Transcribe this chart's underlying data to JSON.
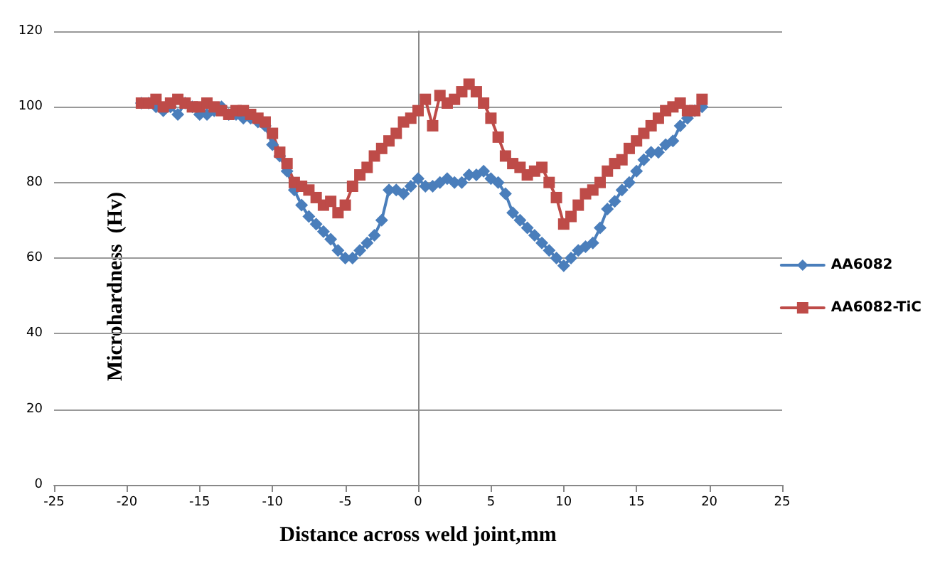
{
  "chart_data": {
    "type": "line",
    "xlabel": "Distance across weld joint,mm",
    "ylabel": "Microhardness  (Hv)",
    "x": [
      -19,
      -18.5,
      -18,
      -17.5,
      -17,
      -16.5,
      -16,
      -15.5,
      -15,
      -14.5,
      -14,
      -13.5,
      -13,
      -12.5,
      -12,
      -11.5,
      -11,
      -10.5,
      -10,
      -9.5,
      -9,
      -8.5,
      -8,
      -7.5,
      -7,
      -6.5,
      -6,
      -5.5,
      -5,
      -4.5,
      -4,
      -3.5,
      -3,
      -2.5,
      -2,
      -1.5,
      -1,
      -0.5,
      0,
      0.5,
      1,
      1.5,
      2,
      2.5,
      3,
      3.5,
      4,
      4.5,
      5,
      5.5,
      6,
      6.5,
      7,
      7.5,
      8,
      8.5,
      9,
      9.5,
      10,
      10.5,
      11,
      11.5,
      12,
      12.5,
      13,
      13.5,
      14,
      14.5,
      15,
      15.5,
      16,
      16.5,
      17,
      17.5,
      18,
      18.5,
      19,
      19.5
    ],
    "series": [
      {
        "name": "AA6082",
        "color": "#4a7ebb",
        "marker": "diamond",
        "values": [
          101,
          101,
          100,
          99,
          100,
          98,
          101,
          100,
          98,
          98,
          99,
          100,
          98,
          98,
          97,
          97,
          96,
          95,
          90,
          87,
          83,
          78,
          74,
          71,
          69,
          67,
          65,
          62,
          60,
          60,
          62,
          64,
          66,
          70,
          78,
          78,
          77,
          79,
          81,
          79,
          79,
          80,
          81,
          80,
          80,
          82,
          82,
          83,
          81,
          80,
          77,
          72,
          70,
          68,
          66,
          64,
          62,
          60,
          58,
          60,
          62,
          63,
          64,
          68,
          73,
          75,
          78,
          80,
          83,
          86,
          88,
          88,
          90,
          91,
          95,
          97,
          99,
          100
        ]
      },
      {
        "name": "AA6082-TiC",
        "color": "#be4b48",
        "marker": "square",
        "values": [
          101,
          101,
          102,
          100,
          101,
          102,
          101,
          100,
          100,
          101,
          100,
          99,
          98,
          99,
          99,
          98,
          97,
          96,
          93,
          88,
          85,
          80,
          79,
          78,
          76,
          74,
          75,
          72,
          74,
          79,
          82,
          84,
          87,
          89,
          91,
          93,
          96,
          97,
          99,
          102,
          95,
          103,
          101,
          102,
          104,
          106,
          104,
          101,
          97,
          92,
          87,
          85,
          84,
          82,
          83,
          84,
          80,
          76,
          69,
          71,
          74,
          77,
          78,
          80,
          83,
          85,
          86,
          89,
          91,
          93,
          95,
          97,
          99,
          100,
          101,
          99,
          99,
          102
        ]
      }
    ],
    "xlim": [
      -25,
      25
    ],
    "xticks": [
      -25,
      -20,
      -15,
      -10,
      -5,
      0,
      5,
      10,
      15,
      20,
      25
    ],
    "ylim": [
      0,
      120
    ],
    "yticks": [
      0,
      20,
      40,
      60,
      80,
      100,
      120
    ],
    "grid": "y",
    "legend": "right",
    "line_style": "solid"
  }
}
